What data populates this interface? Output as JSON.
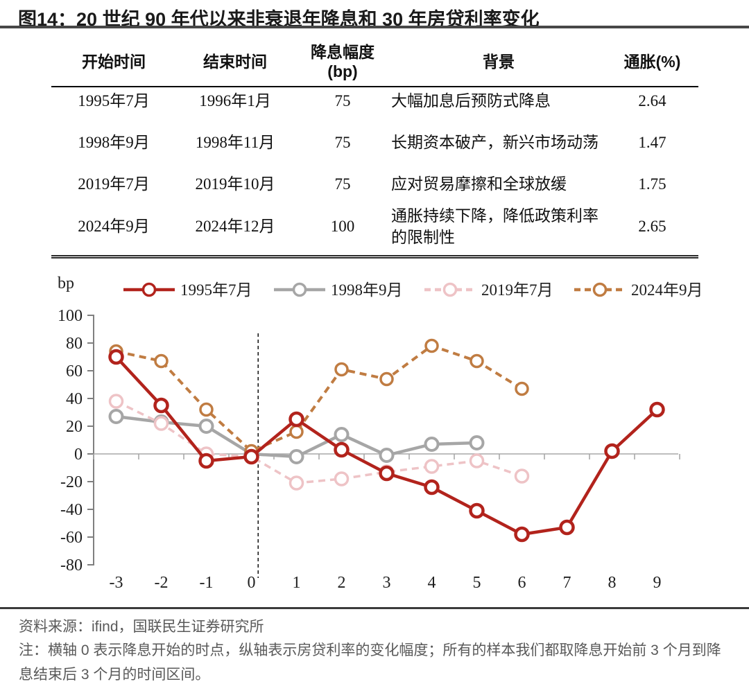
{
  "title": "图14：20 世纪 90 年代以来非衰退年降息和 30 年房贷利率变化",
  "table": {
    "headers": [
      [
        "开始时间"
      ],
      [
        "结束时间"
      ],
      [
        "降息幅度",
        "(bp)"
      ],
      [
        "背景"
      ],
      [
        "通胀(%)"
      ]
    ],
    "rows": [
      [
        "1995年7月",
        "1996年1月",
        "75",
        "大幅加息后预防式降息",
        "2.64"
      ],
      [
        "1998年9月",
        "1998年11月",
        "75",
        "长期资本破产，新兴市场动荡",
        "1.47"
      ],
      [
        "2019年7月",
        "2019年10月",
        "75",
        "应对贸易摩擦和全球放缓",
        "1.75"
      ],
      [
        "2024年9月",
        "2024年12月",
        "100",
        "通胀持续下降，降低政策利率的限制性",
        "2.65"
      ]
    ]
  },
  "chart_data": {
    "type": "line",
    "ylabel": "bp",
    "ylim": [
      -80,
      100
    ],
    "ytick_step": 20,
    "x": [
      -3,
      -2,
      -1,
      0,
      1,
      2,
      3,
      4,
      5,
      6,
      7,
      8,
      9
    ],
    "series": [
      {
        "name": "1995年7月",
        "color": "#b2231c",
        "style": "solid",
        "values": [
          70,
          35,
          -5,
          -2,
          25,
          3,
          -14,
          -24,
          -41,
          -58,
          -53,
          2,
          32
        ]
      },
      {
        "name": "1998年9月",
        "color": "#a6a6a6",
        "style": "solid",
        "values": [
          27,
          23,
          20,
          0,
          -2,
          14,
          -1,
          7,
          8,
          null,
          null,
          null,
          null
        ]
      },
      {
        "name": "2019年7月",
        "color": "#eec3c6",
        "style": "dashed",
        "values": [
          38,
          22,
          0,
          -2,
          -21,
          -18,
          -13,
          -9,
          -5,
          -16,
          null,
          null,
          null
        ]
      },
      {
        "name": "2024年9月",
        "color": "#c07c42",
        "style": "dashed",
        "values": [
          74,
          67,
          32,
          2,
          16,
          61,
          54,
          78,
          67,
          47,
          null,
          null,
          null
        ]
      }
    ],
    "vline_x": 0.15,
    "legend_position": "top",
    "grid": false
  },
  "footer": {
    "source": "资料来源：ifind，国联民生证券研究所",
    "note": "注：横轴 0 表示降息开始的时点，纵轴表示房贷利率的变化幅度；所有的样本我们都取降息开始前 3 个月到降息结束后 3 个月的时间区间。"
  }
}
